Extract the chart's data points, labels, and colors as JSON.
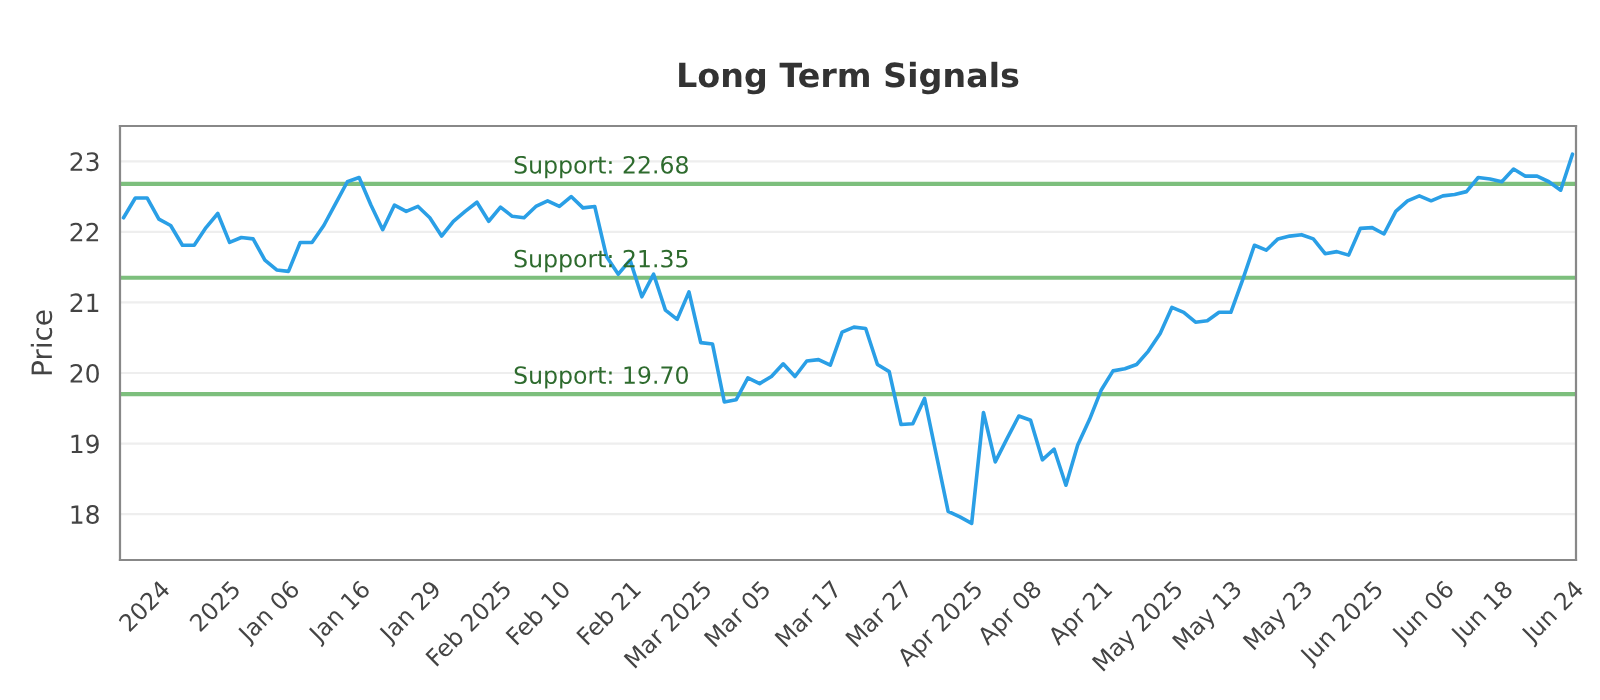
{
  "chart_data": {
    "type": "line",
    "title": "Long Term Signals",
    "ylabel": "Price",
    "categories": [
      null,
      null,
      null,
      "2024",
      null,
      null,
      null,
      null,
      null,
      "2025",
      null,
      null,
      null,
      null,
      "Jan 06",
      null,
      null,
      null,
      null,
      null,
      "Jan 16",
      null,
      null,
      null,
      null,
      null,
      "Jan 29",
      null,
      null,
      null,
      null,
      null,
      "Feb 2025",
      null,
      null,
      null,
      null,
      "Feb 10",
      null,
      null,
      null,
      null,
      null,
      "Feb 21",
      null,
      null,
      null,
      null,
      null,
      "Mar 2025",
      null,
      null,
      null,
      null,
      "Mar 05",
      null,
      null,
      null,
      null,
      null,
      "Mar 17",
      null,
      null,
      null,
      null,
      null,
      "Mar 27",
      null,
      null,
      null,
      null,
      null,
      "Apr 2025",
      null,
      null,
      null,
      null,
      "Apr 08",
      null,
      null,
      null,
      null,
      null,
      "Apr 21",
      null,
      null,
      null,
      null,
      null,
      "May 2025",
      null,
      null,
      null,
      null,
      "May 13",
      null,
      null,
      null,
      null,
      null,
      "May 23",
      null,
      null,
      null,
      null,
      null,
      "Jun 2025",
      null,
      null,
      null,
      null,
      null,
      "Jun 06",
      null,
      null,
      null,
      null,
      "Jun 18",
      null,
      null,
      null,
      null,
      null,
      "Jun 24"
    ],
    "series": [
      {
        "color": "#2a9fe6",
        "values": [
          22.2,
          22.48,
          22.48,
          22.18,
          22.09,
          21.81,
          21.81,
          22.06,
          22.26,
          21.85,
          21.92,
          21.9,
          21.6,
          21.46,
          21.44,
          21.85,
          21.85,
          22.09,
          22.4,
          22.71,
          22.77,
          22.38,
          22.03,
          22.38,
          22.29,
          22.36,
          22.2,
          21.94,
          22.15,
          22.29,
          22.42,
          22.15,
          22.35,
          22.22,
          22.2,
          22.36,
          22.44,
          22.36,
          22.5,
          22.34,
          22.36,
          21.65,
          21.4,
          21.6,
          21.08,
          21.4,
          20.89,
          20.76,
          21.15,
          20.43,
          20.41,
          19.59,
          19.62,
          19.93,
          19.85,
          19.95,
          20.13,
          19.95,
          20.17,
          20.19,
          20.11,
          20.58,
          20.65,
          20.63,
          20.12,
          20.02,
          19.27,
          19.28,
          19.64,
          18.84,
          18.04,
          17.96,
          17.87,
          19.44,
          18.74,
          19.07,
          19.39,
          19.33,
          18.77,
          18.92,
          18.41,
          18.98,
          19.34,
          19.76,
          20.03,
          20.06,
          20.12,
          20.31,
          20.56,
          20.93,
          20.86,
          20.72,
          20.74,
          20.86,
          20.86,
          21.32,
          21.81,
          21.74,
          21.9,
          21.94,
          21.96,
          21.9,
          21.69,
          21.72,
          21.67,
          22.05,
          22.06,
          21.97,
          22.29,
          22.44,
          22.51,
          22.44,
          22.51,
          22.53,
          22.57,
          22.77,
          22.75,
          22.71,
          22.89,
          22.79,
          22.79,
          22.71,
          22.59,
          23.1
        ]
      }
    ],
    "ylim": [
      17.35,
      23.5
    ],
    "yticks": [
      18,
      19,
      20,
      21,
      22,
      23
    ],
    "grid": "y",
    "legend": false,
    "marker": "none",
    "line_style": "solid",
    "ref_lines": [
      {
        "axis": "y",
        "value": 22.68,
        "label": "Support: 22.68",
        "color": "#7dbf7d"
      },
      {
        "axis": "y",
        "value": 21.35,
        "label": "Support: 21.35",
        "color": "#7dbf7d"
      },
      {
        "axis": "y",
        "value": 19.7,
        "label": "Support: 19.70",
        "color": "#7dbf7d"
      }
    ]
  }
}
